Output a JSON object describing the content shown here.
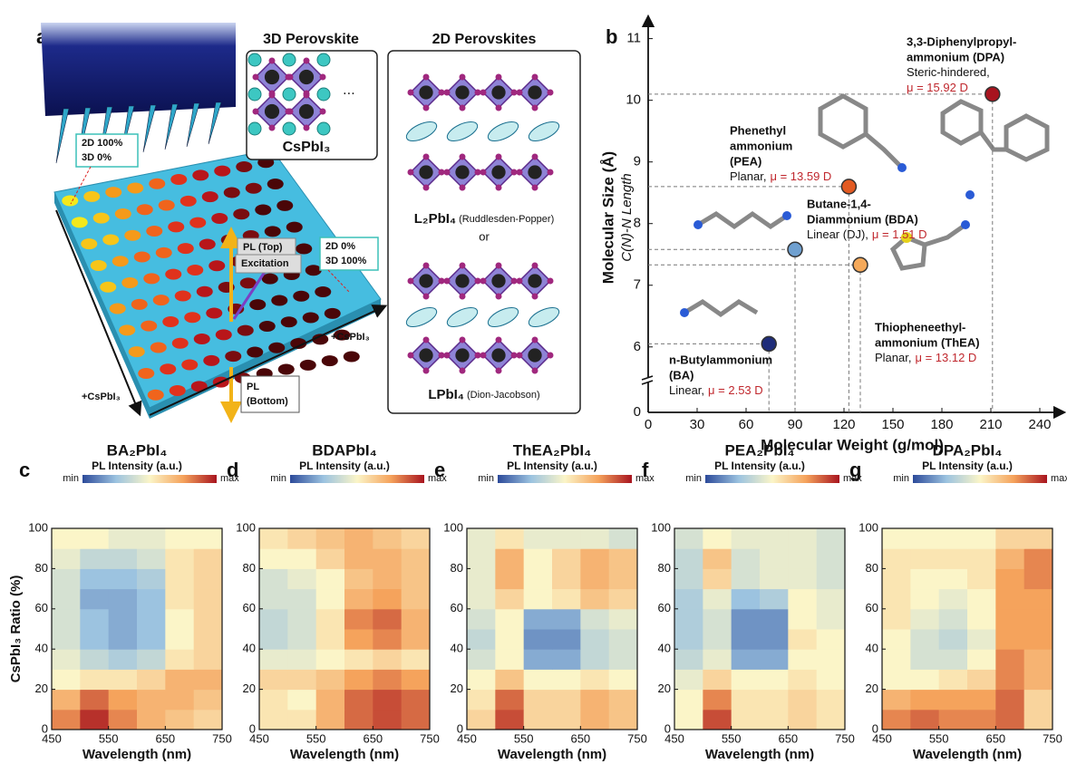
{
  "panel_a": {
    "letter": "a",
    "structure_3d": {
      "title": "3D Perovskite",
      "formula": "CsPbI₃"
    },
    "structure_2d": {
      "title": "2D Perovskites",
      "rp": {
        "formula": "L₂PbI₄",
        "name": "(Ruddlesden-Popper)"
      },
      "or": "or",
      "dj": {
        "formula": "LPbI₄",
        "name": "(Dion-Jacobson)"
      }
    },
    "plate": {
      "corner_2d": [
        "2D 100%",
        "3D 0%"
      ],
      "corner_3d": [
        "2D 0%",
        "3D 100%"
      ],
      "pl_top": "PL (Top)",
      "excitation": "Excitation",
      "pl_bottom": [
        "PL",
        "(Bottom)"
      ],
      "axis_labels": [
        "+CsPbI₃",
        "+CsPbI₃"
      ]
    }
  },
  "chart_data": [
    {
      "type": "scatter",
      "panel": "b",
      "xlabel": "Molecular Weight (g/mol)",
      "ylabel": "Molecular Size (Å)",
      "ylabel2": "C(N)-N Length",
      "xlim": [
        0,
        250
      ],
      "ylim": [
        5.6,
        11.2
      ],
      "y_axis_break": true,
      "xticks": [
        0,
        30,
        60,
        90,
        120,
        150,
        180,
        210,
        240
      ],
      "yticks": [
        0,
        6,
        7,
        8,
        9,
        10,
        11
      ],
      "series": [
        {
          "label": [
            "n-Butylammonium",
            "(BA)"
          ],
          "note": "Linear,",
          "dipole": "μ = 2.53 D",
          "x": 74,
          "y": 6.05,
          "color": "#1f2d7a"
        },
        {
          "label": [
            "Butane-1,4-",
            "Diammonium (BDA)"
          ],
          "note": "Linear (DJ),",
          "dipole": "μ = 1.51 D",
          "x": 90,
          "y": 7.58,
          "color": "#6fa0d0"
        },
        {
          "label": [
            "Thiopheneethyl-",
            "ammonium (ThEA)"
          ],
          "note": "Planar,",
          "dipole": "μ = 13.12 D",
          "x": 130,
          "y": 7.33,
          "color": "#f5a95a"
        },
        {
          "label": [
            "Phenethyl",
            "ammonium",
            "(PEA)"
          ],
          "note": "Planar,",
          "dipole": "μ = 13.59 D",
          "x": 123,
          "y": 8.6,
          "color": "#e25a22"
        },
        {
          "label": [
            "3,3-Diphenylpropyl-",
            "ammonium (DPA)"
          ],
          "note": "Steric-hindered,",
          "dipole": "μ = 15.92 D",
          "x": 211,
          "y": 10.1,
          "color": "#a8141f"
        }
      ]
    },
    {
      "type": "heatmap",
      "panel": "c",
      "title": "BA₂PbI₄",
      "colorbar": {
        "label": "PL Intensity (a.u.)",
        "min": "min",
        "max": "max",
        "colors": [
          "#2c4a9a",
          "#9cc3e0",
          "#fbf5c8",
          "#f5a35c",
          "#a8141f"
        ]
      },
      "xlabel": "Wavelength (nm)",
      "ylabel": "CsPbI₃ Ratio (%)",
      "xlim": [
        450,
        750
      ],
      "ylim": [
        0,
        100
      ],
      "zlim": [
        0,
        1
      ],
      "xticks": [
        450,
        550,
        650,
        750
      ],
      "yticks": [
        0,
        20,
        40,
        60,
        80,
        100
      ],
      "xbins": [
        450,
        500,
        550,
        600,
        650,
        700,
        750
      ],
      "ybins": [
        0,
        10,
        20,
        30,
        40,
        50,
        60,
        70,
        80,
        90,
        100
      ],
      "z": [
        [
          0.8,
          0.95,
          0.8,
          0.7,
          0.65,
          0.6
        ],
        [
          0.7,
          0.85,
          0.75,
          0.7,
          0.7,
          0.65
        ],
        [
          0.5,
          0.55,
          0.55,
          0.6,
          0.7,
          0.7
        ],
        [
          0.45,
          0.35,
          0.3,
          0.35,
          0.55,
          0.6
        ],
        [
          0.4,
          0.25,
          0.2,
          0.25,
          0.5,
          0.6
        ],
        [
          0.4,
          0.25,
          0.2,
          0.25,
          0.5,
          0.6
        ],
        [
          0.4,
          0.2,
          0.2,
          0.25,
          0.55,
          0.6
        ],
        [
          0.4,
          0.25,
          0.25,
          0.3,
          0.55,
          0.6
        ],
        [
          0.45,
          0.35,
          0.35,
          0.4,
          0.55,
          0.6
        ],
        [
          0.5,
          0.5,
          0.45,
          0.45,
          0.5,
          0.5
        ]
      ]
    },
    {
      "type": "heatmap",
      "panel": "d",
      "title": "BDAPbI₄",
      "colorbar": {
        "label": "PL Intensity (a.u.)",
        "min": "min",
        "max": "max",
        "colors": [
          "#2c4a9a",
          "#9cc3e0",
          "#fbf5c8",
          "#f5a35c",
          "#a8141f"
        ]
      },
      "xlabel": "Wavelength (nm)",
      "xlim": [
        450,
        750
      ],
      "ylim": [
        0,
        100
      ],
      "zlim": [
        0,
        1
      ],
      "xticks": [
        450,
        550,
        650,
        750
      ],
      "yticks": [
        0,
        20,
        40,
        60,
        80,
        100
      ],
      "xbins": [
        450,
        500,
        550,
        600,
        650,
        700,
        750
      ],
      "ybins": [
        0,
        10,
        20,
        30,
        40,
        50,
        60,
        70,
        80,
        90,
        100
      ],
      "z": [
        [
          0.55,
          0.55,
          0.7,
          0.85,
          0.9,
          0.85
        ],
        [
          0.55,
          0.5,
          0.7,
          0.85,
          0.9,
          0.85
        ],
        [
          0.6,
          0.6,
          0.65,
          0.75,
          0.8,
          0.75
        ],
        [
          0.45,
          0.45,
          0.5,
          0.55,
          0.6,
          0.55
        ],
        [
          0.35,
          0.4,
          0.55,
          0.75,
          0.8,
          0.7
        ],
        [
          0.35,
          0.4,
          0.55,
          0.8,
          0.85,
          0.7
        ],
        [
          0.4,
          0.4,
          0.5,
          0.7,
          0.75,
          0.65
        ],
        [
          0.4,
          0.45,
          0.5,
          0.65,
          0.7,
          0.65
        ],
        [
          0.5,
          0.5,
          0.6,
          0.7,
          0.7,
          0.65
        ],
        [
          0.55,
          0.6,
          0.65,
          0.7,
          0.65,
          0.6
        ]
      ]
    },
    {
      "type": "heatmap",
      "panel": "e",
      "title": "ThEA₂PbI₄",
      "colorbar": {
        "label": "PL Intensity (a.u.)",
        "min": "min",
        "max": "max",
        "colors": [
          "#2c4a9a",
          "#9cc3e0",
          "#fbf5c8",
          "#f5a35c",
          "#a8141f"
        ]
      },
      "xlabel": "Wavelength (nm)",
      "xlim": [
        450,
        750
      ],
      "ylim": [
        0,
        100
      ],
      "zlim": [
        0,
        1
      ],
      "xticks": [
        450,
        550,
        650,
        750
      ],
      "yticks": [
        0,
        20,
        40,
        60,
        80,
        100
      ],
      "xbins": [
        450,
        500,
        550,
        600,
        650,
        700,
        750
      ],
      "ybins": [
        0,
        10,
        20,
        30,
        40,
        50,
        60,
        70,
        80,
        90,
        100
      ],
      "z": [
        [
          0.6,
          0.9,
          0.6,
          0.6,
          0.7,
          0.65
        ],
        [
          0.55,
          0.85,
          0.6,
          0.6,
          0.7,
          0.65
        ],
        [
          0.5,
          0.65,
          0.5,
          0.5,
          0.55,
          0.5
        ],
        [
          0.4,
          0.5,
          0.2,
          0.2,
          0.35,
          0.4
        ],
        [
          0.35,
          0.5,
          0.15,
          0.15,
          0.35,
          0.4
        ],
        [
          0.4,
          0.5,
          0.2,
          0.2,
          0.4,
          0.45
        ],
        [
          0.45,
          0.6,
          0.5,
          0.55,
          0.65,
          0.6
        ],
        [
          0.45,
          0.7,
          0.5,
          0.6,
          0.7,
          0.65
        ],
        [
          0.45,
          0.7,
          0.5,
          0.6,
          0.7,
          0.65
        ],
        [
          0.45,
          0.55,
          0.45,
          0.45,
          0.45,
          0.4
        ]
      ]
    },
    {
      "type": "heatmap",
      "panel": "f",
      "title": "PEA₂PbI₄",
      "colorbar": {
        "label": "PL Intensity (a.u.)",
        "min": "min",
        "max": "max",
        "colors": [
          "#2c4a9a",
          "#9cc3e0",
          "#fbf5c8",
          "#f5a35c",
          "#a8141f"
        ]
      },
      "xlabel": "Wavelength (nm)",
      "xlim": [
        450,
        750
      ],
      "ylim": [
        0,
        100
      ],
      "zlim": [
        0,
        1
      ],
      "xticks": [
        450,
        550,
        650,
        750
      ],
      "yticks": [
        0,
        20,
        40,
        60,
        80,
        100
      ],
      "xbins": [
        450,
        500,
        550,
        600,
        650,
        700,
        750
      ],
      "ybins": [
        0,
        10,
        20,
        30,
        40,
        50,
        60,
        70,
        80,
        90,
        100
      ],
      "z": [
        [
          0.5,
          0.9,
          0.55,
          0.55,
          0.6,
          0.55
        ],
        [
          0.5,
          0.8,
          0.55,
          0.55,
          0.6,
          0.55
        ],
        [
          0.45,
          0.6,
          0.5,
          0.5,
          0.55,
          0.5
        ],
        [
          0.35,
          0.45,
          0.2,
          0.2,
          0.5,
          0.5
        ],
        [
          0.3,
          0.4,
          0.15,
          0.15,
          0.55,
          0.5
        ],
        [
          0.3,
          0.4,
          0.15,
          0.15,
          0.5,
          0.45
        ],
        [
          0.3,
          0.45,
          0.25,
          0.3,
          0.5,
          0.45
        ],
        [
          0.35,
          0.6,
          0.4,
          0.45,
          0.45,
          0.4
        ],
        [
          0.35,
          0.65,
          0.4,
          0.45,
          0.45,
          0.4
        ],
        [
          0.4,
          0.5,
          0.45,
          0.45,
          0.45,
          0.4
        ]
      ]
    },
    {
      "type": "heatmap",
      "panel": "g",
      "title": "DPA₂PbI₄",
      "colorbar": {
        "label": "PL Intensity (a.u.)",
        "min": "min",
        "max": "max",
        "colors": [
          "#2c4a9a",
          "#9cc3e0",
          "#fbf5c8",
          "#f5a35c",
          "#a8141f"
        ]
      },
      "xlabel": "Wavelength (nm)",
      "xlim": [
        450,
        750
      ],
      "ylim": [
        0,
        100
      ],
      "zlim": [
        0,
        1
      ],
      "xticks": [
        450,
        550,
        650,
        750
      ],
      "yticks": [
        0,
        20,
        40,
        60,
        80,
        100
      ],
      "xbins": [
        450,
        500,
        550,
        600,
        650,
        700,
        750
      ],
      "ybins": [
        0,
        10,
        20,
        30,
        40,
        50,
        60,
        70,
        80,
        90,
        100
      ],
      "z": [
        [
          0.8,
          0.85,
          0.8,
          0.8,
          0.85,
          0.6
        ],
        [
          0.7,
          0.75,
          0.75,
          0.75,
          0.85,
          0.6
        ],
        [
          0.5,
          0.5,
          0.55,
          0.6,
          0.8,
          0.7
        ],
        [
          0.5,
          0.4,
          0.4,
          0.5,
          0.8,
          0.7
        ],
        [
          0.5,
          0.4,
          0.35,
          0.45,
          0.75,
          0.75
        ],
        [
          0.55,
          0.45,
          0.4,
          0.5,
          0.75,
          0.75
        ],
        [
          0.55,
          0.5,
          0.45,
          0.5,
          0.75,
          0.75
        ],
        [
          0.55,
          0.5,
          0.5,
          0.55,
          0.75,
          0.8
        ],
        [
          0.55,
          0.55,
          0.55,
          0.55,
          0.7,
          0.8
        ],
        [
          0.5,
          0.5,
          0.5,
          0.5,
          0.6,
          0.6
        ]
      ]
    }
  ]
}
